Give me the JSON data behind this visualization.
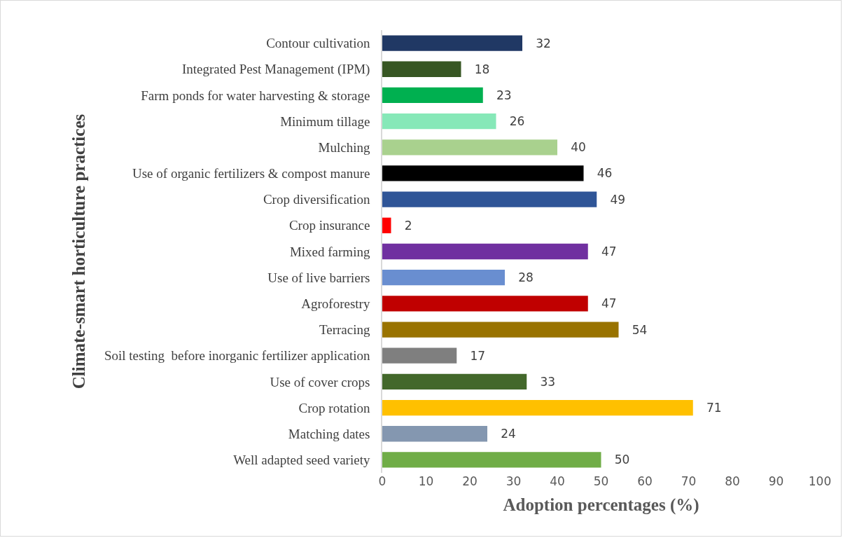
{
  "chart_data": {
    "type": "bar",
    "orientation": "horizontal",
    "xlabel": "Adoption percentages (%)",
    "ylabel": "Climate-smart horticulture practices",
    "categories": [
      "Contour cultivation",
      "Integrated Pest Management (IPM)",
      "Farm ponds for water harvesting & storage",
      "Minimum tillage",
      "Mulching",
      "Use of organic fertilizers & compost manure",
      "Crop diversification",
      "Crop insurance",
      "Mixed farming",
      "Use of live barriers",
      "Agroforestry",
      "Terracing",
      "Soil testing  before inorganic fertilizer application",
      "Use of cover crops",
      "Crop rotation",
      "Matching dates",
      "Well adapted seed variety"
    ],
    "values": [
      32,
      18,
      23,
      26,
      40,
      46,
      49,
      2,
      47,
      28,
      47,
      54,
      17,
      33,
      71,
      24,
      50
    ],
    "colors": [
      "#203864",
      "#375623",
      "#00b050",
      "#86e8b8",
      "#a9d18e",
      "#000000",
      "#2f5597",
      "#ff0000",
      "#7030a0",
      "#698ed0",
      "#c00000",
      "#997300",
      "#7f7f7f",
      "#43682b",
      "#ffc000",
      "#8497b0",
      "#70ad47"
    ],
    "xlim": [
      0,
      100
    ],
    "xticks": [
      0,
      10,
      20,
      30,
      40,
      50,
      60,
      70,
      80,
      90,
      100
    ],
    "data_labels": true
  }
}
